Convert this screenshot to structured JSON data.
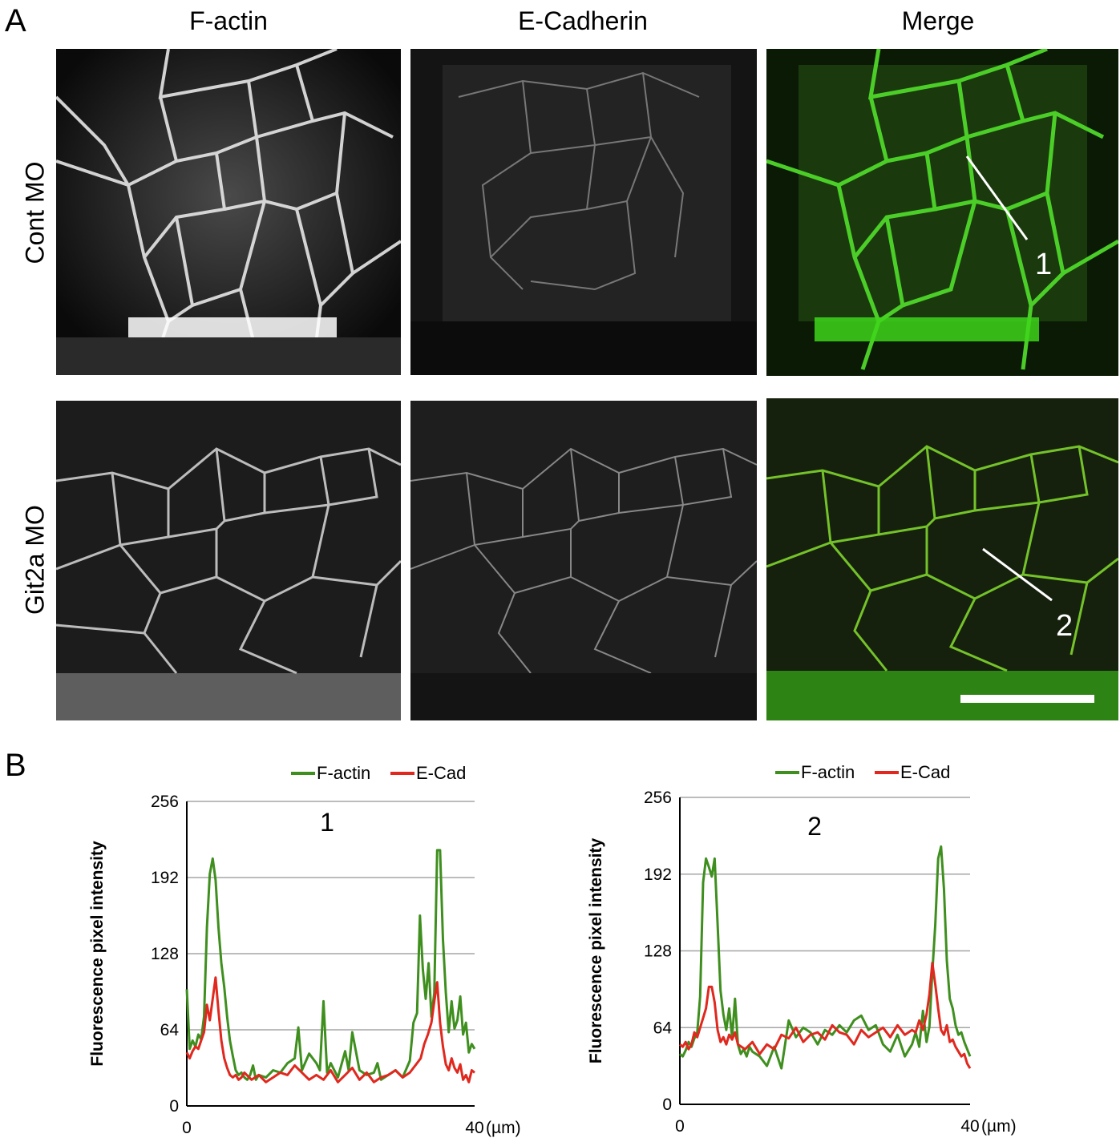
{
  "panel_a": {
    "letter": "A",
    "columns": [
      "F-actin",
      "E-Cadherin",
      "Merge"
    ],
    "rows": [
      "Cont MO",
      "Git2a MO"
    ],
    "line_labels": [
      "1",
      "2"
    ]
  },
  "panel_b": {
    "letter": "B"
  },
  "colors": {
    "factin": "#3f8f1f",
    "ecad": "#e0281e",
    "grid": "#a6a6a6"
  },
  "chart_data": [
    {
      "type": "line",
      "title": "1",
      "xlabel": "",
      "ylabel": "Fluorescence pixel intensity",
      "x_unit": "(µm)",
      "xlim": [
        0,
        40
      ],
      "ylim": [
        0,
        256
      ],
      "xticks": [
        "0",
        "40"
      ],
      "yticks": [
        "0",
        "64",
        "128",
        "192",
        "256"
      ],
      "grid": true,
      "legend": "top-center",
      "series": [
        {
          "name": "F-actin",
          "color": "#3f8f1f",
          "x": [
            0,
            0.4,
            0.8,
            1.2,
            1.6,
            2,
            2.4,
            2.8,
            3.2,
            3.6,
            4,
            4.4,
            4.8,
            5.2,
            5.6,
            6,
            6.4,
            6.8,
            7.2,
            7.6,
            8,
            8.4,
            8.8,
            9.2,
            9.6,
            10,
            11,
            12,
            13,
            14,
            15,
            15.5,
            16,
            17,
            18,
            18.5,
            19,
            19.5,
            20,
            21,
            22,
            22.5,
            23,
            24,
            25,
            26,
            26.5,
            27,
            28,
            29,
            30,
            31,
            31.5,
            32,
            32.4,
            32.8,
            33.2,
            33.6,
            34,
            34.4,
            34.8,
            35.2,
            35.6,
            36,
            36.4,
            36.8,
            37.2,
            37.6,
            38,
            38.4,
            38.8,
            39.2,
            39.6,
            40
          ],
          "values": [
            98,
            48,
            55,
            50,
            60,
            56,
            75,
            150,
            195,
            208,
            190,
            150,
            120,
            100,
            75,
            55,
            42,
            30,
            26,
            28,
            24,
            22,
            26,
            34,
            22,
            26,
            24,
            30,
            28,
            36,
            40,
            66,
            30,
            44,
            36,
            30,
            88,
            28,
            36,
            24,
            46,
            30,
            62,
            30,
            26,
            28,
            36,
            22,
            26,
            30,
            24,
            38,
            70,
            78,
            160,
            115,
            90,
            120,
            75,
            95,
            215,
            215,
            140,
            95,
            62,
            88,
            65,
            72,
            92,
            60,
            70,
            45,
            52,
            48
          ]
        },
        {
          "name": "E-Cad",
          "color": "#e0281e",
          "x": [
            0,
            0.4,
            0.8,
            1.2,
            1.6,
            2,
            2.4,
            2.8,
            3.2,
            3.6,
            4,
            4.4,
            4.8,
            5.2,
            5.6,
            6,
            6.4,
            6.8,
            7.2,
            7.6,
            8,
            9,
            10,
            11,
            12,
            13,
            14,
            15,
            16,
            17,
            18,
            19,
            20,
            21,
            22,
            23,
            24,
            25,
            26,
            27,
            28,
            29,
            30,
            31,
            32,
            32.5,
            33,
            33.5,
            34,
            34.4,
            34.8,
            35.2,
            35.6,
            36,
            36.4,
            36.8,
            37.2,
            37.6,
            38,
            38.4,
            38.8,
            39.2,
            39.6,
            40
          ],
          "values": [
            45,
            40,
            46,
            50,
            48,
            55,
            62,
            85,
            72,
            90,
            108,
            80,
            55,
            40,
            32,
            26,
            24,
            26,
            22,
            24,
            28,
            22,
            26,
            20,
            24,
            28,
            26,
            34,
            28,
            22,
            26,
            22,
            30,
            20,
            26,
            32,
            22,
            28,
            20,
            24,
            26,
            30,
            24,
            28,
            36,
            40,
            52,
            60,
            70,
            88,
            104,
            70,
            50,
            35,
            30,
            40,
            32,
            28,
            35,
            22,
            26,
            20,
            30,
            28
          ]
        }
      ]
    },
    {
      "type": "line",
      "title": "2",
      "xlabel": "",
      "ylabel": "Fluorescence pixel intensity",
      "x_unit": "(µm)",
      "xlim": [
        0,
        40
      ],
      "ylim": [
        0,
        256
      ],
      "xticks": [
        "0",
        "40"
      ],
      "yticks": [
        "0",
        "64",
        "128",
        "192",
        "256"
      ],
      "grid": true,
      "legend": "top-center",
      "series": [
        {
          "name": "F-actin",
          "color": "#3f8f1f",
          "x": [
            0,
            0.4,
            0.8,
            1.2,
            1.6,
            2,
            2.4,
            2.8,
            3.2,
            3.6,
            4,
            4.4,
            4.8,
            5.2,
            5.6,
            6,
            6.4,
            6.8,
            7.2,
            7.6,
            8,
            8.4,
            8.8,
            9.2,
            9.6,
            10,
            11,
            12,
            13,
            14,
            15,
            16,
            17,
            18,
            19,
            20,
            21,
            22,
            23,
            24,
            25,
            26,
            27,
            28,
            29,
            30,
            31,
            32,
            32.5,
            33,
            33.5,
            34,
            34.4,
            34.8,
            35.2,
            35.6,
            36,
            36.4,
            36.8,
            37.2,
            37.6,
            38,
            38.4,
            38.8,
            39.2,
            39.6,
            40
          ],
          "values": [
            42,
            40,
            45,
            52,
            48,
            55,
            60,
            90,
            185,
            205,
            198,
            190,
            205,
            150,
            95,
            75,
            62,
            80,
            56,
            88,
            50,
            42,
            46,
            40,
            48,
            44,
            40,
            32,
            48,
            30,
            70,
            56,
            64,
            60,
            50,
            62,
            58,
            66,
            60,
            70,
            74,
            62,
            66,
            50,
            44,
            58,
            40,
            50,
            60,
            48,
            78,
            52,
            65,
            110,
            150,
            205,
            215,
            180,
            120,
            88,
            80,
            66,
            58,
            60,
            52,
            46,
            40
          ]
        },
        {
          "name": "E-Cad",
          "color": "#e0281e",
          "x": [
            0,
            0.4,
            0.8,
            1.2,
            1.6,
            2,
            2.4,
            2.8,
            3.2,
            3.6,
            4,
            4.4,
            4.8,
            5.2,
            5.6,
            6,
            6.4,
            6.8,
            7.2,
            7.6,
            8,
            9,
            10,
            11,
            12,
            13,
            14,
            15,
            16,
            17,
            18,
            19,
            20,
            21,
            22,
            23,
            24,
            25,
            26,
            27,
            28,
            29,
            30,
            31,
            32,
            32.5,
            33,
            33.5,
            34,
            34.4,
            34.8,
            35.2,
            35.6,
            36,
            36.4,
            36.8,
            37.2,
            37.6,
            38,
            38.4,
            38.8,
            39.2,
            39.6,
            40
          ],
          "values": [
            50,
            48,
            52,
            46,
            50,
            60,
            56,
            64,
            72,
            80,
            98,
            98,
            85,
            62,
            52,
            56,
            50,
            58,
            54,
            60,
            50,
            46,
            52,
            42,
            50,
            46,
            58,
            55,
            64,
            52,
            58,
            60,
            54,
            66,
            60,
            58,
            50,
            62,
            56,
            60,
            64,
            56,
            66,
            58,
            62,
            60,
            70,
            62,
            75,
            92,
            118,
            100,
            80,
            62,
            58,
            66,
            52,
            54,
            48,
            44,
            40,
            42,
            34,
            30
          ]
        }
      ]
    }
  ]
}
